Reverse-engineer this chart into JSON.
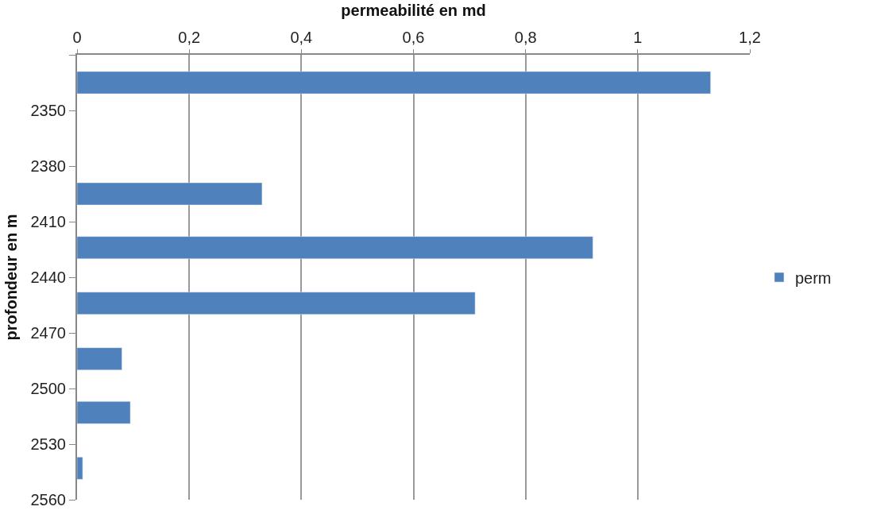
{
  "chart_data": {
    "type": "bar",
    "orientation": "horizontal",
    "xlabel": "permeabilité en md",
    "ylabel": "profondeur en m",
    "x": [
      2335,
      2395,
      2424,
      2454,
      2484,
      2513,
      2543
    ],
    "series": [
      {
        "name": "perm",
        "color": "#4f81bd",
        "values": [
          1.13,
          0.33,
          0.92,
          0.71,
          0.08,
          0.095,
          0.01
        ]
      }
    ],
    "xlim": [
      0,
      1.2
    ],
    "xticks": [
      0,
      {
        "value": 0.2,
        "label": "0,2"
      },
      {
        "value": 0.4,
        "label": "0,4"
      },
      {
        "value": 0.6,
        "label": "0,6"
      },
      {
        "value": 0.8,
        "label": "0,8"
      },
      1,
      {
        "value": 1.2,
        "label": "1,2"
      }
    ],
    "ylim": [
      2560,
      2320
    ],
    "yticks": [
      {
        "value": 2320,
        "label": null
      },
      2350,
      2380,
      2410,
      2440,
      2470,
      2500,
      2530,
      2560
    ],
    "grid": "x",
    "legend": "right"
  }
}
